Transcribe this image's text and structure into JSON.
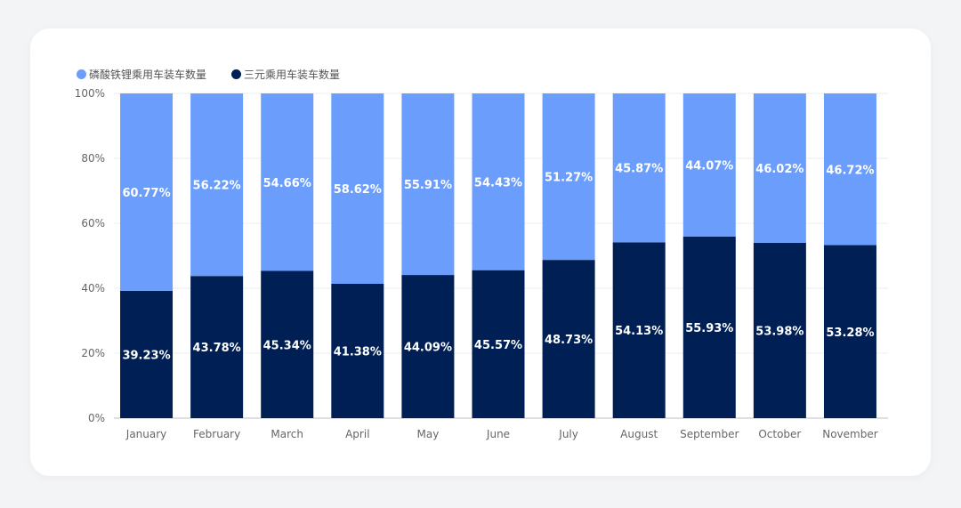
{
  "chart_data": {
    "type": "bar",
    "stacked": true,
    "categories": [
      "January",
      "February",
      "March",
      "April",
      "May",
      "June",
      "July",
      "August",
      "September",
      "October",
      "November"
    ],
    "series": [
      {
        "name": "三元乘用车装车数量",
        "color": "#002055",
        "values": [
          39.23,
          43.78,
          45.34,
          41.38,
          44.09,
          45.57,
          48.73,
          54.13,
          55.93,
          53.98,
          53.28
        ],
        "labels": [
          "39.23%",
          "43.78%",
          "45.34%",
          "41.38%",
          "44.09%",
          "45.57%",
          "48.73%",
          "54.13%",
          "55.93%",
          "53.98%",
          "53.28%"
        ]
      },
      {
        "name": "磷酸铁锂乘用车装车数量",
        "color": "#6b9efc",
        "values": [
          60.77,
          56.22,
          54.66,
          58.62,
          55.91,
          54.43,
          51.27,
          45.87,
          44.07,
          46.02,
          46.72
        ],
        "labels": [
          "60.77%",
          "56.22%",
          "54.66%",
          "58.62%",
          "55.91%",
          "54.43%",
          "51.27%",
          "45.87%",
          "44.07%",
          "46.02%",
          "46.72%"
        ]
      }
    ],
    "y_ticks": [
      "0%",
      "20%",
      "40%",
      "60%",
      "80%",
      "100%"
    ],
    "ylim": [
      0,
      100
    ],
    "grid": true,
    "legend": {
      "position": "top-left",
      "items": [
        "磷酸铁锂乘用车装车数量",
        "三元乘用车装车数量"
      ]
    },
    "xlabel": "",
    "ylabel": "",
    "title": ""
  }
}
